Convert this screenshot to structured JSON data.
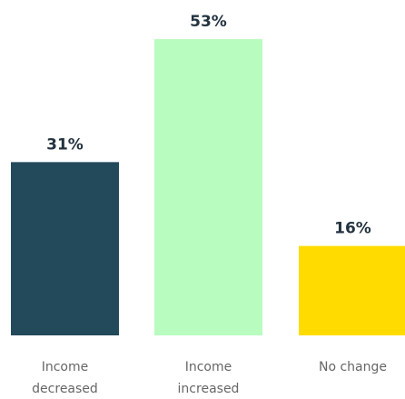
{
  "chart_data": {
    "type": "bar",
    "categories": [
      "Income decreased",
      "Income increased",
      "No change"
    ],
    "values": [
      31,
      53,
      16
    ],
    "value_labels": [
      "31%",
      "53%",
      "16%"
    ],
    "colors": [
      "#234a5a",
      "#b9fcc0",
      "#ffdb00"
    ]
  }
}
